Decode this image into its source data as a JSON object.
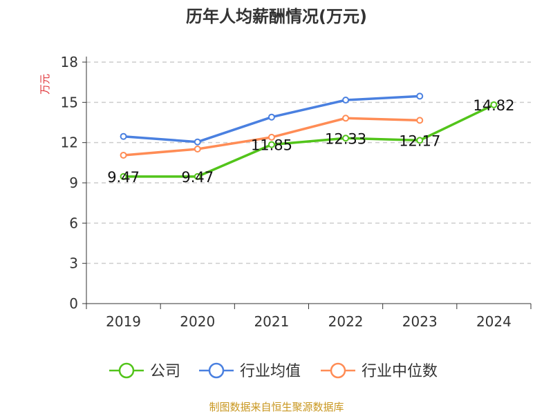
{
  "chart_data": {
    "type": "line",
    "title": "历年人均薪酬情况(万元)",
    "ylabel": "万元",
    "xlabel": "",
    "categories": [
      "2019",
      "2020",
      "2021",
      "2022",
      "2023",
      "2024"
    ],
    "ylim": [
      0,
      18
    ],
    "yticks": [
      0,
      3,
      6,
      9,
      12,
      15,
      18
    ],
    "grid": true,
    "legend_position": "bottom",
    "series": [
      {
        "name": "公司",
        "color": "#52c41a",
        "values": [
          9.47,
          9.47,
          11.85,
          12.33,
          12.17,
          14.82
        ],
        "labels": [
          "9.47",
          "9.47",
          "11.85",
          "12.33",
          "12.17",
          "14.82"
        ]
      },
      {
        "name": "行业均值",
        "color": "#4a80e0",
        "values": [
          12.46,
          12.05,
          13.9,
          15.17,
          15.46,
          null
        ]
      },
      {
        "name": "行业中位数",
        "color": "#ff8c55",
        "values": [
          11.06,
          11.52,
          12.4,
          13.82,
          13.66,
          null
        ]
      }
    ]
  },
  "source": "制图数据来自恒生聚源数据库"
}
